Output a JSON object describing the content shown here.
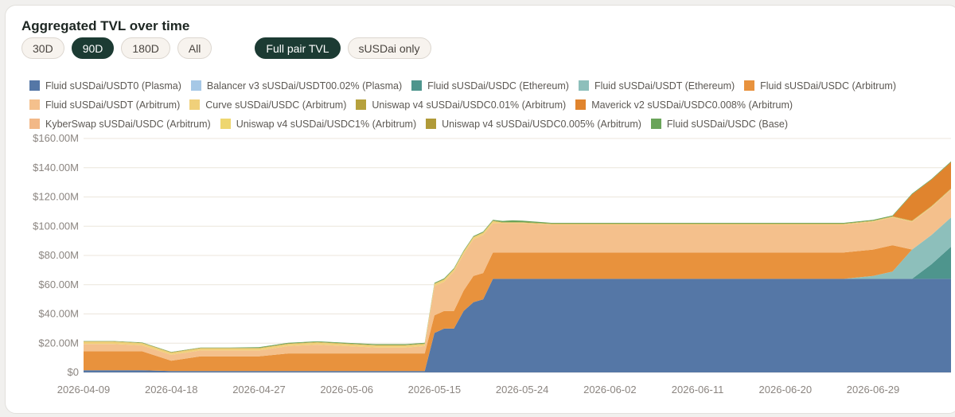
{
  "title": "Aggregated TVL over time",
  "range_buttons": [
    {
      "label": "30D",
      "active": false
    },
    {
      "label": "90D",
      "active": true
    },
    {
      "label": "180D",
      "active": false
    },
    {
      "label": "All",
      "active": false
    }
  ],
  "mode_buttons": [
    {
      "label": "Full pair TVL",
      "active": true
    },
    {
      "label": "sUSDai only",
      "active": false
    }
  ],
  "colors": {
    "active_pill": "#1c3b33",
    "grid": "#ece6dc"
  },
  "chart_data": {
    "type": "area",
    "stacked": true,
    "title": "Aggregated TVL over time",
    "ylim": [
      0,
      160
    ],
    "y_ticks": [
      {
        "value": 0,
        "label": "$0"
      },
      {
        "value": 20,
        "label": "$20.00M"
      },
      {
        "value": 40,
        "label": "$40.00M"
      },
      {
        "value": 60,
        "label": "$60.00M"
      },
      {
        "value": 80,
        "label": "$80.00M"
      },
      {
        "value": 100,
        "label": "$100.00M"
      },
      {
        "value": 120,
        "label": "$120.00M"
      },
      {
        "value": 140,
        "label": "$140.00M"
      },
      {
        "value": 160,
        "label": "$160.00M"
      }
    ],
    "x_tick_labels": [
      "2026-04-09",
      "2026-04-18",
      "2026-04-27",
      "2026-05-06",
      "2026-05-15",
      "2026-05-24",
      "2026-06-02",
      "2026-06-11",
      "2026-06-20",
      "2026-06-29"
    ],
    "x": [
      "2026-04-09",
      "2026-04-12",
      "2026-04-15",
      "2026-04-18",
      "2026-04-21",
      "2026-04-24",
      "2026-04-27",
      "2026-04-30",
      "2026-05-03",
      "2026-05-06",
      "2026-05-09",
      "2026-05-12",
      "2026-05-14",
      "2026-05-15",
      "2026-05-16",
      "2026-05-17",
      "2026-05-18",
      "2026-05-19",
      "2026-05-20",
      "2026-05-21",
      "2026-05-22",
      "2026-05-23",
      "2026-05-24",
      "2026-05-27",
      "2026-05-30",
      "2026-06-02",
      "2026-06-05",
      "2026-06-08",
      "2026-06-11",
      "2026-06-14",
      "2026-06-17",
      "2026-06-20",
      "2026-06-23",
      "2026-06-26",
      "2026-06-29",
      "2026-07-01",
      "2026-07-03",
      "2026-07-05",
      "2026-07-07"
    ],
    "y_unit": "M",
    "series": [
      {
        "name": "Fluid sUSDai/USDT0 (Plasma)",
        "color": "#5577a6",
        "values": [
          1.5,
          1.5,
          1.5,
          1.0,
          1.0,
          1.0,
          1.0,
          1.0,
          1.0,
          1.0,
          1.0,
          1.0,
          1.0,
          27,
          30,
          30,
          42,
          48,
          50,
          64,
          64,
          64,
          64,
          64,
          64,
          64,
          64,
          64,
          64,
          64,
          64,
          64,
          64,
          64,
          64,
          64,
          64,
          64,
          64
        ]
      },
      {
        "name": "Balancer v3 sUSDai/USDT00.02% (Plasma)",
        "color": "#a6c8e6",
        "values": [
          0,
          0,
          0,
          0,
          0,
          0,
          0,
          0,
          0,
          0,
          0,
          0,
          0,
          0,
          0,
          0,
          0,
          0,
          0,
          0,
          0,
          0,
          0,
          0,
          0,
          0,
          0,
          0,
          0,
          0,
          0,
          0,
          0,
          0,
          0,
          0,
          0,
          0,
          0
        ]
      },
      {
        "name": "Fluid sUSDai/USDC (Ethereum)",
        "color": "#4e958d",
        "values": [
          0,
          0,
          0,
          0,
          0,
          0,
          0,
          0,
          0,
          0,
          0,
          0,
          0,
          0,
          0,
          0,
          0,
          0,
          0,
          0,
          0,
          0,
          0,
          0,
          0,
          0,
          0,
          0,
          0,
          0,
          0,
          0,
          0,
          0,
          0,
          0,
          0,
          10,
          22
        ]
      },
      {
        "name": "Fluid sUSDai/USDT (Ethereum)",
        "color": "#8dbfbb",
        "values": [
          0,
          0,
          0,
          0,
          0,
          0,
          0,
          0,
          0,
          0,
          0,
          0,
          0,
          0,
          0,
          0,
          0,
          0,
          0,
          0,
          0,
          0,
          0,
          0,
          0,
          0,
          0,
          0,
          0,
          0,
          0,
          0,
          0,
          0,
          2,
          5,
          20,
          20,
          20
        ]
      },
      {
        "name": "Fluid sUSDai/USDC (Arbitrum)",
        "color": "#e8923d",
        "values": [
          13,
          13,
          13,
          7,
          10,
          10,
          10,
          12,
          12,
          12,
          12,
          12,
          12,
          12,
          12,
          12,
          14,
          18,
          18,
          18,
          18,
          18,
          18,
          18,
          18,
          18,
          18,
          18,
          18,
          18,
          18,
          18,
          18,
          18,
          18,
          18,
          0,
          0,
          0
        ]
      },
      {
        "name": "Fluid sUSDai/USDT (Arbitrum)",
        "color": "#f4c08c",
        "values": [
          5,
          5,
          4,
          4,
          4,
          4,
          4,
          5,
          6,
          5,
          4,
          4,
          5,
          20,
          20,
          27,
          25,
          25,
          26,
          20,
          20,
          20,
          20,
          19,
          19,
          19,
          19,
          19,
          19,
          19,
          19,
          19,
          19,
          19,
          19,
          19,
          19,
          19,
          19
        ]
      },
      {
        "name": "Curve sUSDai/USDC (Arbitrum)",
        "color": "#f0d07a",
        "values": [
          1.5,
          1.5,
          1.5,
          1.5,
          1.5,
          1.5,
          1.5,
          1.5,
          1.5,
          1.5,
          1.5,
          1.5,
          1.5,
          1.5,
          1.5,
          1.5,
          1.5,
          1.5,
          1.5,
          1.5,
          0.5,
          0.5,
          0.5,
          0.5,
          0.5,
          0.5,
          0.5,
          0.5,
          0.5,
          0.5,
          0.5,
          0.5,
          0.5,
          0.5,
          0.5,
          0.5,
          0.5,
          0.5,
          0.5
        ]
      },
      {
        "name": "Uniswap v4 sUSDai/USDC0.01% (Arbitrum)",
        "color": "#b6a13d",
        "values": [
          0.3,
          0.3,
          0.3,
          0.3,
          0.3,
          0.3,
          0.3,
          0.3,
          0.3,
          0.3,
          0.3,
          0.3,
          0.3,
          0.3,
          0.3,
          0.3,
          0.3,
          0.3,
          0.3,
          0.3,
          0.3,
          0.3,
          0.3,
          0.3,
          0.3,
          0.3,
          0.3,
          0.3,
          0.3,
          0.3,
          0.3,
          0.3,
          0.3,
          0.3,
          0.3,
          0.3,
          0.3,
          0.3,
          0.3
        ]
      },
      {
        "name": "Maverick v2 sUSDai/USDC0.008% (Arbitrum)",
        "color": "#e0842e",
        "values": [
          0,
          0,
          0,
          0,
          0,
          0,
          0,
          0,
          0,
          0,
          0,
          0,
          0,
          0,
          0,
          0,
          0,
          0,
          0,
          0,
          0,
          0,
          0,
          0,
          0,
          0,
          0,
          0,
          0,
          0,
          0,
          0,
          0,
          0,
          0,
          0,
          18,
          18,
          18
        ]
      },
      {
        "name": "KyberSwap sUSDai/USDC (Arbitrum)",
        "color": "#f2b887",
        "values": [
          0,
          0,
          0,
          0,
          0,
          0,
          0,
          0,
          0,
          0,
          0,
          0,
          0,
          0,
          0,
          0,
          0,
          0,
          0,
          0,
          0,
          0,
          0,
          0,
          0,
          0,
          0,
          0,
          0,
          0,
          0,
          0,
          0,
          0,
          0,
          0,
          0,
          0,
          0
        ]
      },
      {
        "name": "Uniswap v4 sUSDai/USDC1% (Arbitrum)",
        "color": "#eed66f",
        "values": [
          0,
          0,
          0,
          0,
          0,
          0,
          0,
          0,
          0,
          0,
          0,
          0,
          0,
          0,
          0,
          0,
          0,
          0,
          0,
          0,
          0,
          0,
          0,
          0,
          0,
          0,
          0,
          0,
          0,
          0,
          0,
          0,
          0,
          0,
          0,
          0,
          0,
          0,
          0
        ]
      },
      {
        "name": "Uniswap v4 sUSDai/USDC0.005% (Arbitrum)",
        "color": "#b09a38",
        "values": [
          0,
          0,
          0,
          0,
          0,
          0,
          0,
          0,
          0,
          0,
          0,
          0,
          0,
          0,
          0,
          0,
          0,
          0,
          0,
          0,
          0,
          0,
          0,
          0,
          0,
          0,
          0,
          0,
          0,
          0,
          0,
          0,
          0,
          0,
          0,
          0,
          0,
          0,
          0
        ]
      },
      {
        "name": "Fluid sUSDai/USDC (Base)",
        "color": "#6aa45a",
        "values": [
          0.2,
          0.2,
          0.2,
          0.2,
          0.2,
          0.2,
          0.5,
          0.5,
          0.5,
          0.5,
          0.5,
          0.5,
          0.5,
          0.5,
          0.5,
          0.5,
          0.5,
          0.5,
          0.5,
          0.5,
          0.8,
          1.2,
          1.0,
          0.5,
          0.5,
          0.5,
          0.5,
          0.5,
          0.5,
          0.5,
          0.5,
          0.5,
          0.5,
          0.5,
          0.5,
          0.5,
          0.5,
          0.5,
          0.5
        ]
      }
    ]
  }
}
